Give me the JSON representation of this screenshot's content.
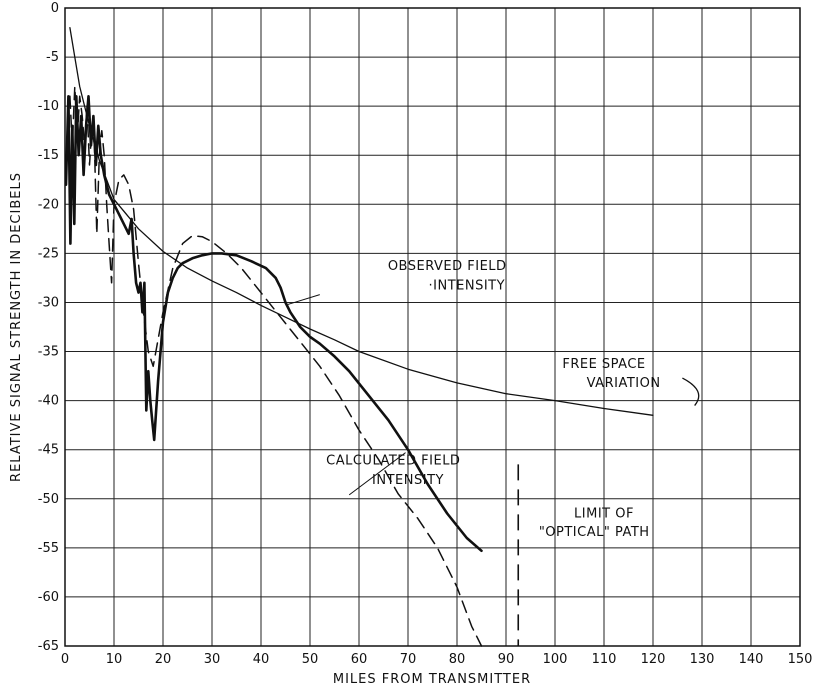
{
  "chart_data": {
    "type": "line",
    "title": "",
    "xlabel": "MILES FROM TRANSMITTER",
    "ylabel": "RELATIVE SIGNAL STRENGTH IN DECIBELS",
    "xlim": [
      0,
      150
    ],
    "ylim": [
      -65,
      0
    ],
    "grid": true,
    "x_ticks": [
      0,
      10,
      20,
      30,
      40,
      50,
      60,
      70,
      80,
      90,
      100,
      110,
      120,
      130,
      140,
      150
    ],
    "y_ticks": [
      0,
      -5,
      -10,
      -15,
      -20,
      -25,
      -30,
      -35,
      -40,
      -45,
      -50,
      -55,
      -60,
      -65
    ],
    "series": [
      {
        "name": "OBSERVED FIELD INTENSITY",
        "style": "solid-thick",
        "x": [
          0.2,
          0.7,
          1.1,
          1.5,
          1.9,
          2.3,
          2.8,
          3.3,
          3.8,
          4.3,
          4.8,
          5.3,
          5.8,
          6.3,
          6.8,
          7.3,
          8,
          9,
          10,
          11,
          12,
          13,
          13.6,
          14,
          14.5,
          15,
          15.4,
          15.8,
          16.2,
          16.6,
          17,
          17.4,
          17.8,
          18.2,
          19,
          20,
          21,
          22,
          23,
          24,
          26,
          28,
          30,
          32,
          35,
          38,
          41,
          43,
          44,
          45,
          46,
          48,
          50,
          52,
          55,
          58,
          62,
          66,
          70,
          74,
          78,
          82,
          85
        ],
        "y": [
          -18,
          -9,
          -24,
          -12,
          -22,
          -9,
          -15,
          -11,
          -17,
          -12,
          -9,
          -14,
          -11,
          -16,
          -12,
          -15,
          -17,
          -19,
          -20,
          -21,
          -22,
          -23,
          -21.5,
          -25,
          -28,
          -29,
          -28,
          -31,
          -28,
          -41,
          -37,
          -40,
          -42,
          -44,
          -38,
          -32,
          -29,
          -27.5,
          -26.5,
          -26,
          -25.5,
          -25.2,
          -25,
          -25,
          -25.2,
          -25.8,
          -26.5,
          -27.5,
          -28.5,
          -30,
          -31,
          -32.5,
          -33.5,
          -34.2,
          -35.5,
          -37,
          -39.5,
          -42,
          -45,
          -48.5,
          -51.5,
          -54,
          -55.3
        ]
      },
      {
        "name": "CALCULATED FIELD INTENSITY",
        "style": "dashed",
        "x": [
          1,
          1.5,
          2,
          2.5,
          3,
          3.5,
          4,
          4.5,
          5,
          5.5,
          6,
          6.5,
          7,
          7.5,
          8,
          8.5,
          9,
          9.5,
          10,
          11,
          12,
          13,
          14,
          15,
          16,
          17,
          18,
          20,
          22,
          24,
          26,
          28,
          30,
          33,
          36,
          40,
          44,
          48,
          52,
          56,
          60,
          64,
          68,
          72,
          76,
          80,
          83,
          85
        ],
        "y": [
          -9,
          -14,
          -8,
          -13,
          -9,
          -11,
          -14,
          -10,
          -16,
          -12,
          -14,
          -23,
          -15,
          -12.5,
          -15,
          -20,
          -24,
          -28,
          -20,
          -17.5,
          -17,
          -18,
          -20.5,
          -26,
          -31,
          -35,
          -36.5,
          -31,
          -26.5,
          -24,
          -23.2,
          -23.3,
          -23.8,
          -25,
          -26.5,
          -29,
          -31.5,
          -34,
          -36.5,
          -39.5,
          -43,
          -46,
          -49.5,
          -52,
          -55,
          -59,
          -63,
          -65
        ]
      },
      {
        "name": "FREE SPACE VARIATION",
        "style": "solid-thin",
        "x": [
          1,
          2,
          3,
          5,
          7,
          10,
          15,
          20,
          25,
          30,
          35,
          40,
          45,
          50,
          55,
          60,
          70,
          80,
          90,
          100,
          110,
          120
        ],
        "y": [
          -2,
          -5,
          -8,
          -12,
          -15.5,
          -19.5,
          -22.5,
          -24.8,
          -26.5,
          -27.8,
          -29,
          -30.3,
          -31.5,
          -32.7,
          -33.8,
          -35,
          -36.8,
          -38.2,
          -39.3,
          -40,
          -40.8,
          -41.5
        ]
      }
    ],
    "annotations": [
      {
        "text": "OBSERVED FIELD",
        "x": 78,
        "y": -26.7
      },
      {
        "text": "·INTENSITY",
        "x": 82,
        "y": -28.7
      },
      {
        "text": "CALCULATED FIELD",
        "x": 67,
        "y": -46.5
      },
      {
        "text": "INTENSITY",
        "x": 70,
        "y": -48.5
      },
      {
        "text": "FREE SPACE",
        "x": 110,
        "y": -36.7
      },
      {
        "text": "VARIATION",
        "x": 114,
        "y": -38.6
      },
      {
        "text": "LIMIT OF",
        "x": 110,
        "y": -51.9
      },
      {
        "text": "\"OPTICAL\" PATH",
        "x": 108,
        "y": -53.8
      }
    ],
    "markers": [
      {
        "name": "limit of optical path",
        "x": 92.5,
        "y_range": [
          -46.5,
          -65
        ],
        "style": "dashed"
      }
    ]
  }
}
